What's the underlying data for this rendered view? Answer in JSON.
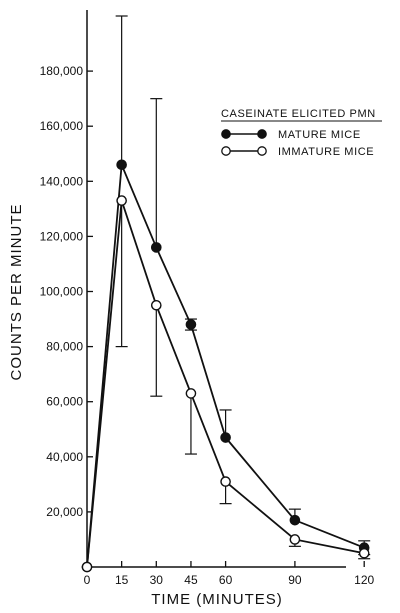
{
  "chart_data": {
    "type": "line",
    "title": "",
    "xlabel": "TIME (MINUTES)",
    "ylabel": "COUNTS PER MINUTE",
    "x_ticks": [
      "0",
      "15",
      "30",
      "45",
      "60",
      "90",
      "120"
    ],
    "y_ticks": [
      "20,000",
      "40,000",
      "60,000",
      "80,000",
      "100,000",
      "120,000",
      "140,000",
      "160,000",
      "180,000"
    ],
    "xlim": [
      0,
      150
    ],
    "ylim": [
      0,
      200000
    ],
    "grid": false,
    "legend_title": "CASEINATE ELICITED PMN",
    "legend_position": "upper-right",
    "series": [
      {
        "name": "MATURE MICE",
        "marker": "filled-circle",
        "color": "#111111",
        "x": [
          0,
          15,
          30,
          45,
          60,
          90,
          120
        ],
        "y": [
          0,
          146000,
          116000,
          88000,
          47000,
          17000,
          7000
        ],
        "error_up": [
          0,
          54000,
          54000,
          2000,
          10000,
          4000,
          2500
        ],
        "error_down": [
          0,
          0,
          0,
          2000,
          0,
          0,
          2500
        ]
      },
      {
        "name": "IMMATURE MICE",
        "marker": "open-circle",
        "color": "#111111",
        "x": [
          0,
          15,
          30,
          45,
          60,
          90,
          120
        ],
        "y": [
          0,
          133000,
          95000,
          63000,
          31000,
          10000,
          5000
        ],
        "error_up": [
          0,
          0,
          0,
          0,
          0,
          0,
          0
        ],
        "error_down": [
          0,
          53000,
          33000,
          22000,
          8000,
          2500,
          2000
        ]
      }
    ]
  }
}
